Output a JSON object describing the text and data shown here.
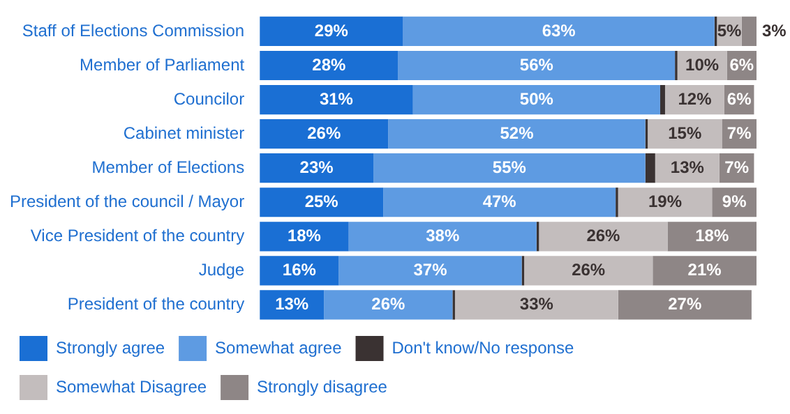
{
  "chart_data": {
    "type": "bar",
    "orientation": "horizontal",
    "stacked": true,
    "categories": [
      "Staff of Elections Commission",
      "Member of Parliament",
      "Councilor",
      "Cabinet minister",
      "Member of Elections",
      "President of the council / Mayor",
      "Vice President of the country",
      "Judge",
      "President of the country"
    ],
    "series": [
      {
        "name": "Strongly agree",
        "color": "#1a6fd4",
        "values": [
          29,
          28,
          31,
          26,
          23,
          25,
          18,
          16,
          13
        ],
        "value_labels": [
          "29%",
          "28%",
          "31%",
          "26%",
          "23%",
          "25%",
          "18%",
          "16%",
          "13%"
        ]
      },
      {
        "name": "Somewhat agree",
        "color": "#5e9be2",
        "values": [
          63,
          56,
          50,
          52,
          55,
          47,
          38,
          37,
          26
        ],
        "value_labels": [
          "63%",
          "56%",
          "50%",
          "52%",
          "55%",
          "47%",
          "38%",
          "37%",
          "26%"
        ]
      },
      {
        "name": "Don't know/No response",
        "color": "#3a3232",
        "values": [
          0.5,
          0.5,
          1,
          0.5,
          2,
          0.5,
          0.5,
          0.5,
          0.5
        ],
        "value_labels": [
          null,
          null,
          null,
          null,
          null,
          null,
          null,
          null,
          null
        ]
      },
      {
        "name": "Somewhat Disagree",
        "color": "#c3bdbd",
        "values": [
          5,
          10,
          12,
          15,
          13,
          19,
          26,
          26,
          33
        ],
        "value_labels": [
          "5%",
          "10%",
          "12%",
          "15%",
          "13%",
          "19%",
          "26%",
          "26%",
          "33%"
        ]
      },
      {
        "name": "Strongly disagree",
        "color": "#8e8686",
        "values": [
          3,
          6,
          6,
          7,
          7,
          9,
          18,
          21,
          27
        ],
        "value_labels": [
          "3%",
          "6%",
          "6%",
          "7%",
          "7%",
          "9%",
          "18%",
          "21%",
          "27%"
        ]
      }
    ],
    "xlim": [
      0,
      100.5
    ],
    "tick_labels": "y",
    "legend": "bottom"
  }
}
